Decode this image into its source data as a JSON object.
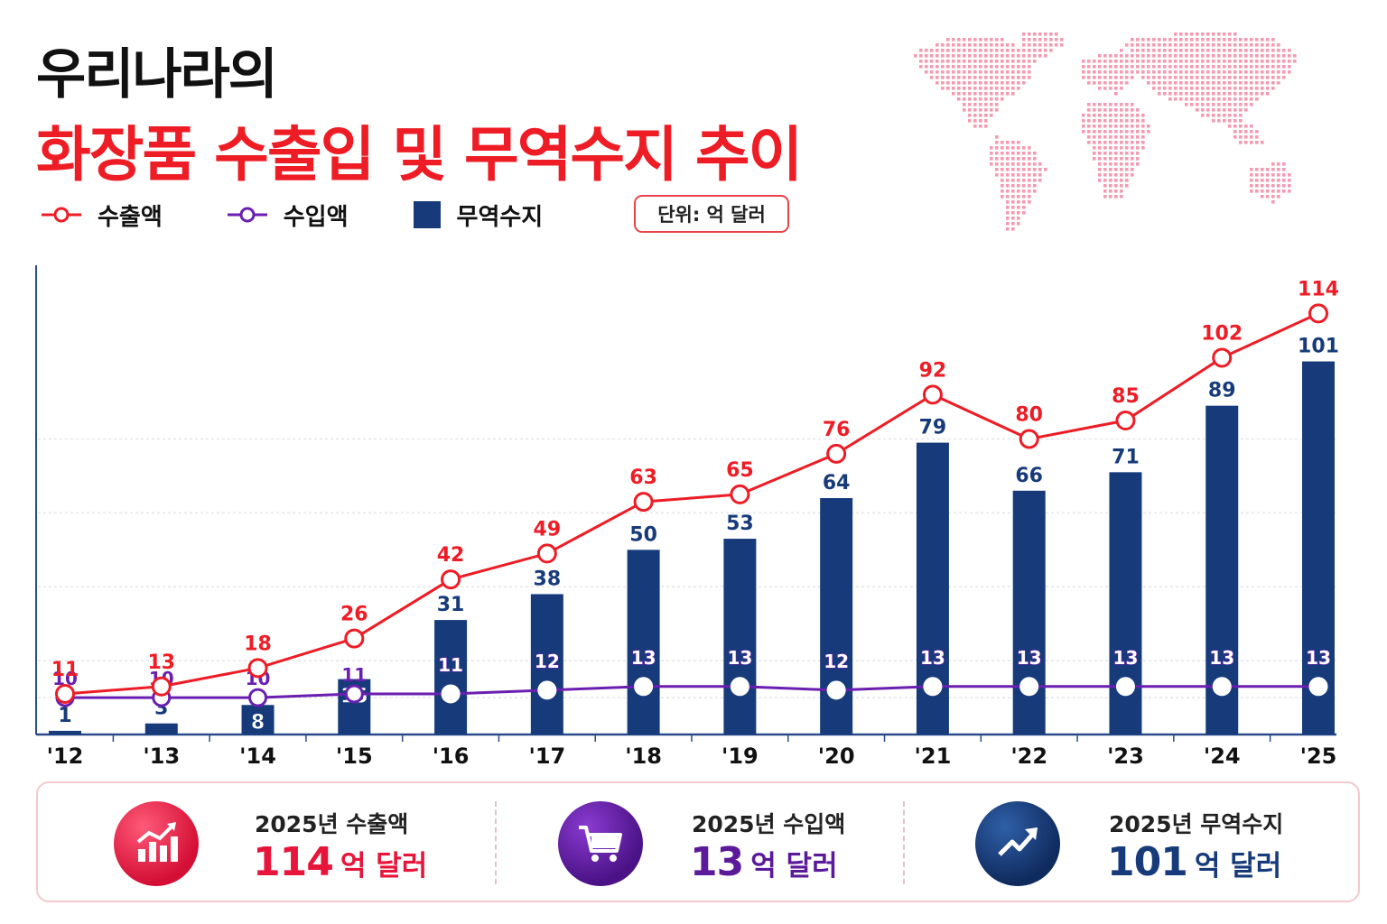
{
  "title": {
    "line1": "우리나라의",
    "line2": "화장품 수출입 및 무역수지 추이"
  },
  "unit_label": "단위: 억 달러",
  "colors": {
    "export": "#ee1c25",
    "import": "#6a1fb0",
    "balance": "#173b7a",
    "title_accent": "#ee1c25",
    "map_dots": "#f07a9a"
  },
  "map_icon": "world-map-dotted",
  "chart_data": {
    "type": "bar",
    "categories": [
      "'12",
      "'13",
      "'14",
      "'15",
      "'16",
      "'17",
      "'18",
      "'19",
      "'20",
      "'21",
      "'22",
      "'23",
      "'24",
      "'25"
    ],
    "series": [
      {
        "name": "수출액",
        "type": "line",
        "values": [
          11,
          13,
          18,
          26,
          42,
          49,
          63,
          65,
          76,
          92,
          80,
          85,
          102,
          114
        ]
      },
      {
        "name": "수입액",
        "type": "line",
        "values": [
          10,
          10,
          10,
          11,
          11,
          12,
          13,
          13,
          12,
          13,
          13,
          13,
          13,
          13
        ]
      },
      {
        "name": "무역수지",
        "type": "bar",
        "values": [
          1,
          3,
          8,
          15,
          31,
          38,
          50,
          53,
          64,
          79,
          66,
          71,
          89,
          101
        ]
      }
    ],
    "ylim": [
      0,
      128
    ],
    "grid": true,
    "legend": "top-left"
  },
  "summary": [
    {
      "label": "2025년 수출액",
      "value": "114",
      "unit": "억 달러",
      "icon": "chart-growth-icon",
      "color": "#e8153b"
    },
    {
      "label": "2025년 수입액",
      "value": "13",
      "unit": "억 달러",
      "icon": "shopping-cart-icon",
      "color": "#5b1a9a"
    },
    {
      "label": "2025년 무역수지",
      "value": "101",
      "unit": "억 달러",
      "icon": "trend-up-arrow-icon",
      "color": "#173b7a"
    }
  ]
}
